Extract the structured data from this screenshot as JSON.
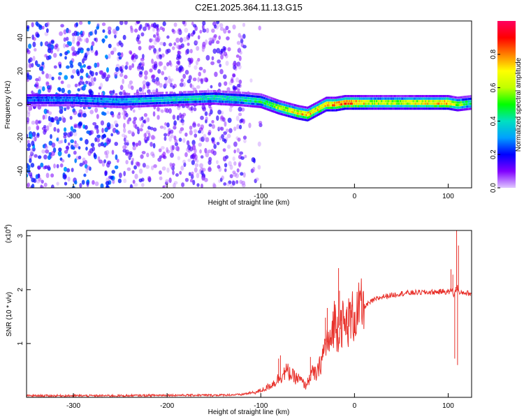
{
  "title": "C2E1.2025.364.11.13.G15",
  "colors": {
    "snr_line": "#e8312b",
    "spectrogram_dots": "#8a2be2",
    "colorbar_stops": [
      "#e0c8ff",
      "#8000ff",
      "#0000ff",
      "#00a0ff",
      "#00e0c0",
      "#00ff00",
      "#c0ff00",
      "#ffff00",
      "#ff8000",
      "#ff0000",
      "#ff0060"
    ]
  },
  "chart_data": [
    {
      "type": "heatmap",
      "name": "spectrogram",
      "title": "C2E1.2025.364.11.13.G15",
      "xlabel": "Height of straight line (km)",
      "ylabel": "Frequency (Hz)",
      "xlim": [
        -350,
        125
      ],
      "ylim": [
        -50,
        50
      ],
      "x_ticks": [
        -300,
        -200,
        -100,
        0,
        100
      ],
      "x_tick_labels": [
        "-300",
        "-200",
        "-100",
        "0",
        "100"
      ],
      "y_ticks": [
        -40,
        -20,
        0,
        20,
        40
      ],
      "y_tick_labels": [
        "-40",
        "-20",
        "0",
        "20",
        "40"
      ],
      "ridge": {
        "x": [
          -350,
          -300,
          -250,
          -200,
          -150,
          -120,
          -100,
          -80,
          -60,
          -50,
          -40,
          -30,
          -20,
          -10,
          0,
          20,
          50,
          80,
          100,
          110,
          125
        ],
        "freq": [
          3,
          3,
          2,
          3,
          4,
          3,
          2,
          -2,
          -5,
          -6,
          -3,
          0,
          0,
          1,
          1,
          1,
          1,
          1,
          1,
          0,
          1
        ],
        "peak_amplitude": [
          0.3,
          0.35,
          0.4,
          0.45,
          0.5,
          0.5,
          0.55,
          0.7,
          0.85,
          0.9,
          0.85,
          0.9,
          0.95,
          0.95,
          0.95,
          0.75,
          0.75,
          0.85,
          0.95,
          0.7,
          0.5
        ]
      },
      "colorbar": {
        "label": "Normalized spectral amplitude",
        "range": [
          0,
          1
        ],
        "ticks": [
          0.0,
          0.2,
          0.4,
          0.6,
          0.8
        ],
        "tick_labels": [
          "0.0",
          "0.2",
          "0.4",
          "0.6",
          "0.8"
        ]
      }
    },
    {
      "type": "line",
      "name": "snr",
      "xlabel": "Height of straight line (km)",
      "ylabel": "SNR (10 * v/v)",
      "y_multiplier_base": "(x10",
      "y_multiplier_exp": "4",
      "y_multiplier_close": ")",
      "xlim": [
        -350,
        125
      ],
      "ylim": [
        0,
        3.1
      ],
      "x_ticks": [
        -300,
        -200,
        -100,
        0,
        100
      ],
      "x_tick_labels": [
        "-300",
        "-200",
        "-100",
        "0",
        "100"
      ],
      "y_ticks": [
        1,
        2,
        3
      ],
      "y_tick_labels": [
        "1",
        "2",
        "3"
      ],
      "series": [
        {
          "name": "SNR",
          "x": [
            -350,
            -300,
            -250,
            -200,
            -150,
            -120,
            -105,
            -95,
            -85,
            -78,
            -72,
            -65,
            -58,
            -52,
            -46,
            -40,
            -35,
            -30,
            -26,
            -22,
            -18,
            -14,
            -10,
            -5,
            0,
            10,
            20,
            30,
            40,
            50,
            60,
            70,
            80,
            90,
            95,
            100,
            104,
            106,
            108,
            110,
            112,
            116,
            120,
            125
          ],
          "y": [
            0.03,
            0.03,
            0.03,
            0.04,
            0.04,
            0.05,
            0.08,
            0.14,
            0.24,
            0.35,
            0.42,
            0.33,
            0.28,
            0.18,
            0.45,
            0.42,
            0.7,
            1.05,
            0.95,
            1.45,
            1.25,
            1.42,
            1.28,
            1.45,
            1.52,
            1.68,
            1.8,
            1.87,
            1.9,
            1.93,
            1.94,
            1.95,
            1.95,
            1.96,
            1.97,
            1.95,
            2.0,
            1.9,
            1.98,
            2.05,
            1.92,
            1.95,
            1.94,
            1.92
          ]
        }
      ],
      "spikes": {
        "x": [
          -81,
          -79,
          -47,
          -31,
          -29,
          -17,
          -16,
          -14,
          -8,
          -3,
          103,
          105,
          107,
          108,
          109,
          110,
          111
        ],
        "y": [
          0.72,
          0.78,
          0.75,
          1.48,
          1.66,
          2.4,
          1.98,
          1.62,
          1.68,
          1.72,
          2.38,
          2.28,
          0.72,
          2.05,
          3.1,
          0.6,
          2.82
        ]
      }
    }
  ]
}
